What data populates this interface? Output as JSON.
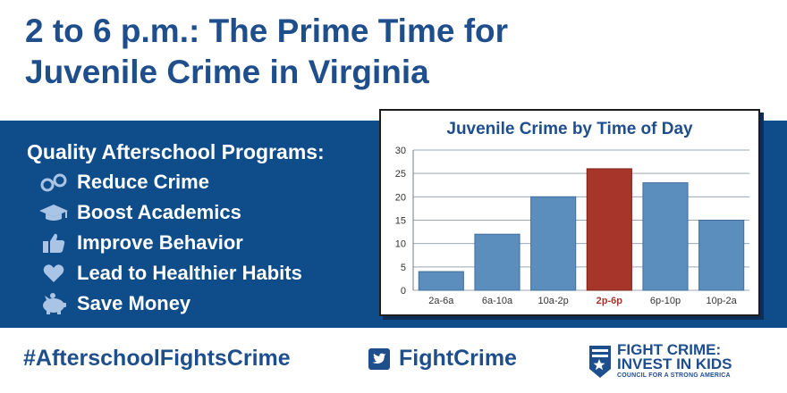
{
  "headline": {
    "line1": "2 to 6 p.m.: The Prime Time for",
    "line2": "Juvenile Crime in Virginia"
  },
  "programs": {
    "title": "Quality Afterschool Programs:",
    "items": [
      {
        "icon": "handcuffs-icon",
        "label": "Reduce Crime"
      },
      {
        "icon": "graduation-cap-icon",
        "label": "Boost Academics"
      },
      {
        "icon": "thumbs-up-icon",
        "label": "Improve Behavior"
      },
      {
        "icon": "heart-icon",
        "label": "Lead to Healthier Habits"
      },
      {
        "icon": "piggy-bank-icon",
        "label": "Save Money"
      }
    ]
  },
  "chart_data": {
    "type": "bar",
    "title": "Juvenile Crime by Time of Day",
    "categories": [
      "2a-6a",
      "6a-10a",
      "10a-2p",
      "2p-6p",
      "6p-10p",
      "10p-2a"
    ],
    "values": [
      4,
      12,
      20,
      26,
      23,
      15
    ],
    "highlight_index": 3,
    "xlabel": "",
    "ylabel": "",
    "ylim": [
      0,
      30
    ],
    "yticks": [
      0,
      5,
      10,
      15,
      20,
      25,
      30
    ],
    "grid": true,
    "colors": {
      "bar": "#5b8dbd",
      "highlight": "#a8352a",
      "bar_stroke": "#3f6f9f",
      "grid": "#9aa7b5"
    }
  },
  "footer": {
    "hashtag": "#AfterschoolFightsCrime",
    "twitter": "FightCrime",
    "org_line1": "FIGHT CRIME:",
    "org_line2": "INVEST IN KIDS",
    "org_line3": "COUNCIL FOR A STRONG AMERICA"
  },
  "colors": {
    "brand_blue": "#1f4e8c",
    "band_blue": "#0f4c8a",
    "white": "#ffffff"
  }
}
